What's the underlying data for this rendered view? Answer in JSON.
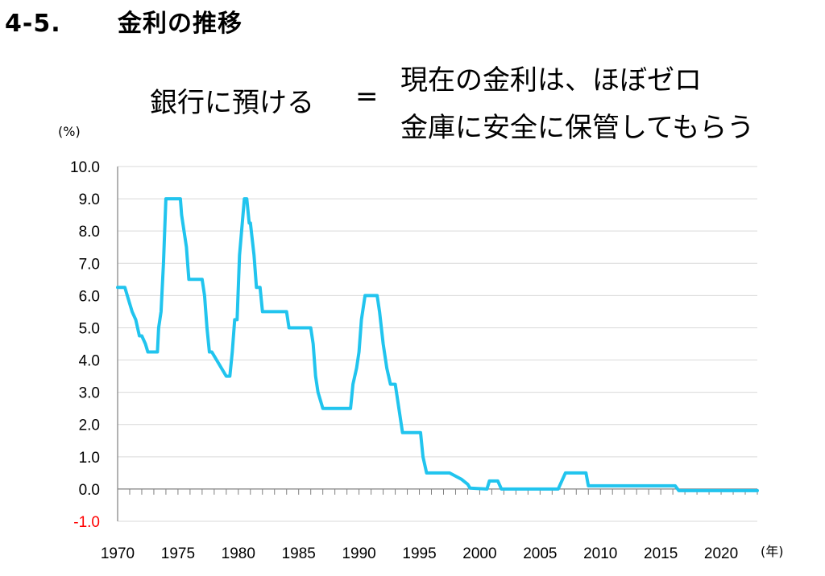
{
  "heading": {
    "number": "4-5.",
    "title": "金利の推移"
  },
  "message": {
    "left": "銀行に預ける",
    "equals": "=",
    "right_line1": "現在の金利は、ほぼゼロ",
    "right_line2": "金庫に安全に保管してもらう"
  },
  "chart_data": {
    "type": "line",
    "y_unit": "(%)",
    "x_unit": "(年)",
    "ylim": [
      -1.0,
      10.0
    ],
    "xlim": [
      1970,
      2023
    ],
    "y_ticks": [
      "-1.0",
      "0.0",
      "1.0",
      "2.0",
      "3.0",
      "4.0",
      "5.0",
      "6.0",
      "7.0",
      "8.0",
      "9.0",
      "10.0"
    ],
    "x_ticks": [
      "1970",
      "1975",
      "1980",
      "1985",
      "1990",
      "1995",
      "2000",
      "2005",
      "2010",
      "2015",
      "2020"
    ],
    "grid": "horizontal",
    "line_color": "#21c4ee",
    "negative_tick_color": "#ff0000",
    "series": [
      {
        "x": [
          1970.0,
          1970.6,
          1970.8,
          1971.0,
          1971.2,
          1971.5,
          1971.8,
          1972.0,
          1972.3,
          1972.5,
          1972.6,
          1973.3,
          1973.4,
          1973.6,
          1973.8,
          1974.0,
          1975.2,
          1975.3,
          1975.5,
          1975.7,
          1975.9,
          1977.0,
          1977.2,
          1977.4,
          1977.6,
          1977.8,
          1979.0,
          1979.3,
          1979.5,
          1979.7,
          1979.9,
          1980.1,
          1980.5,
          1980.7,
          1980.9,
          1981.0,
          1981.3,
          1981.5,
          1981.8,
          1982.0,
          1984.0,
          1984.2,
          1986.0,
          1986.2,
          1986.4,
          1986.6,
          1987.0,
          1987.2,
          1989.3,
          1989.5,
          1989.8,
          1990.0,
          1990.2,
          1990.5,
          1991.5,
          1991.7,
          1992.0,
          1992.3,
          1992.6,
          1993.0,
          1993.3,
          1993.6,
          1994.0,
          1995.1,
          1995.3,
          1995.6,
          1996.5,
          1997.0,
          1997.5,
          1998.0,
          1998.5,
          1999.0,
          1999.2,
          2000.6,
          2000.8,
          2001.5,
          2001.8,
          2006.5,
          2006.8,
          2007.1,
          2007.3,
          2008.8,
          2009.0,
          2016.2,
          2016.5,
          2023.0
        ],
        "y": [
          6.25,
          6.25,
          6.0,
          5.75,
          5.5,
          5.25,
          4.75,
          4.75,
          4.5,
          4.25,
          4.25,
          4.25,
          5.0,
          5.5,
          7.0,
          9.0,
          9.0,
          8.5,
          8.0,
          7.5,
          6.5,
          6.5,
          6.0,
          5.0,
          4.25,
          4.25,
          3.5,
          3.5,
          4.25,
          5.25,
          5.25,
          7.25,
          9.0,
          9.0,
          8.25,
          8.25,
          7.25,
          6.25,
          6.25,
          5.5,
          5.5,
          5.0,
          5.0,
          4.5,
          3.5,
          3.0,
          2.5,
          2.5,
          2.5,
          3.25,
          3.75,
          4.25,
          5.25,
          6.0,
          6.0,
          5.5,
          4.5,
          3.75,
          3.25,
          3.25,
          2.5,
          1.75,
          1.75,
          1.75,
          1.0,
          0.5,
          0.5,
          0.5,
          0.5,
          0.4,
          0.3,
          0.15,
          0.03,
          0.0,
          0.25,
          0.25,
          0.0,
          0.0,
          0.25,
          0.5,
          0.5,
          0.5,
          0.1,
          0.1,
          -0.05,
          -0.05
        ]
      }
    ]
  }
}
